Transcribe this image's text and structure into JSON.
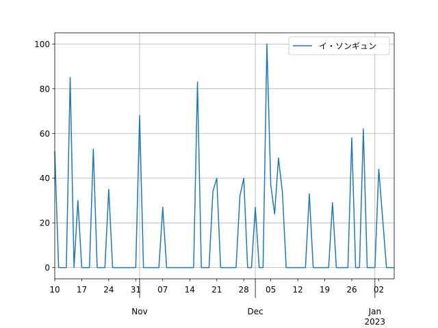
{
  "chart_data": {
    "type": "line",
    "x": [
      "2022-10-10",
      "2022-10-11",
      "2022-10-12",
      "2022-10-13",
      "2022-10-14",
      "2022-10-15",
      "2022-10-16",
      "2022-10-17",
      "2022-10-18",
      "2022-10-19",
      "2022-10-20",
      "2022-10-21",
      "2022-10-22",
      "2022-10-23",
      "2022-10-24",
      "2022-10-25",
      "2022-10-26",
      "2022-10-27",
      "2022-10-28",
      "2022-10-29",
      "2022-10-30",
      "2022-10-31",
      "2022-11-01",
      "2022-11-02",
      "2022-11-03",
      "2022-11-04",
      "2022-11-05",
      "2022-11-06",
      "2022-11-07",
      "2022-11-08",
      "2022-11-09",
      "2022-11-10",
      "2022-11-11",
      "2022-11-12",
      "2022-11-13",
      "2022-11-14",
      "2022-11-15",
      "2022-11-16",
      "2022-11-17",
      "2022-11-18",
      "2022-11-19",
      "2022-11-20",
      "2022-11-21",
      "2022-11-22",
      "2022-11-23",
      "2022-11-24",
      "2022-11-25",
      "2022-11-26",
      "2022-11-27",
      "2022-11-28",
      "2022-11-29",
      "2022-11-30",
      "2022-12-01",
      "2022-12-02",
      "2022-12-03",
      "2022-12-04",
      "2022-12-05",
      "2022-12-06",
      "2022-12-07",
      "2022-12-08",
      "2022-12-09",
      "2022-12-10",
      "2022-12-11",
      "2022-12-12",
      "2022-12-13",
      "2022-12-14",
      "2022-12-15",
      "2022-12-16",
      "2022-12-17",
      "2022-12-18",
      "2022-12-19",
      "2022-12-20",
      "2022-12-21",
      "2022-12-22",
      "2022-12-23",
      "2022-12-24",
      "2022-12-25",
      "2022-12-26",
      "2022-12-27",
      "2022-12-28",
      "2022-12-29",
      "2022-12-30",
      "2022-12-31",
      "2023-01-01",
      "2023-01-02",
      "2023-01-03",
      "2023-01-04",
      "2023-01-05",
      "2023-01-06"
    ],
    "series": [
      {
        "name": "イ・ソンギュン",
        "color": "#1f77b4",
        "values": [
          52,
          0,
          0,
          0,
          85,
          0,
          30,
          0,
          0,
          0,
          53,
          0,
          0,
          0,
          35,
          0,
          0,
          0,
          0,
          0,
          0,
          0,
          68,
          0,
          0,
          0,
          0,
          0,
          27,
          0,
          0,
          0,
          0,
          0,
          0,
          0,
          0,
          83,
          0,
          0,
          0,
          34,
          40,
          0,
          0,
          0,
          0,
          0,
          32,
          40,
          0,
          0,
          27,
          0,
          0,
          100,
          37,
          24,
          49,
          34,
          0,
          0,
          0,
          0,
          0,
          0,
          33,
          0,
          0,
          0,
          0,
          0,
          29,
          0,
          0,
          0,
          0,
          58,
          0,
          0,
          62,
          0,
          0,
          0,
          44,
          22,
          0,
          0,
          0
        ]
      }
    ],
    "xlim": [
      "2022-10-10",
      "2023-01-06"
    ],
    "xticks": [
      {
        "value": "2022-10-10",
        "label": "10"
      },
      {
        "value": "2022-10-17",
        "label": "17"
      },
      {
        "value": "2022-10-24",
        "label": "24"
      },
      {
        "value": "2022-10-31",
        "label": "31"
      },
      {
        "value": "2022-11-07",
        "label": "07"
      },
      {
        "value": "2022-11-14",
        "label": "14"
      },
      {
        "value": "2022-11-21",
        "label": "21"
      },
      {
        "value": "2022-11-28",
        "label": "28"
      },
      {
        "value": "2022-12-05",
        "label": "05"
      },
      {
        "value": "2022-12-12",
        "label": "12"
      },
      {
        "value": "2022-12-19",
        "label": "19"
      },
      {
        "value": "2022-12-26",
        "label": "26"
      },
      {
        "value": "2023-01-02",
        "label": "02"
      }
    ],
    "xticks_major": [
      {
        "value": "2022-11-01",
        "label": "Nov"
      },
      {
        "value": "2022-12-01",
        "label": "Dec"
      },
      {
        "value": "2023-01-01",
        "label": "Jan\n2023"
      }
    ],
    "ylim": [
      -5,
      105
    ],
    "yticks": [
      0,
      20,
      40,
      60,
      80,
      100
    ],
    "grid": true,
    "legend": "upper-right"
  }
}
